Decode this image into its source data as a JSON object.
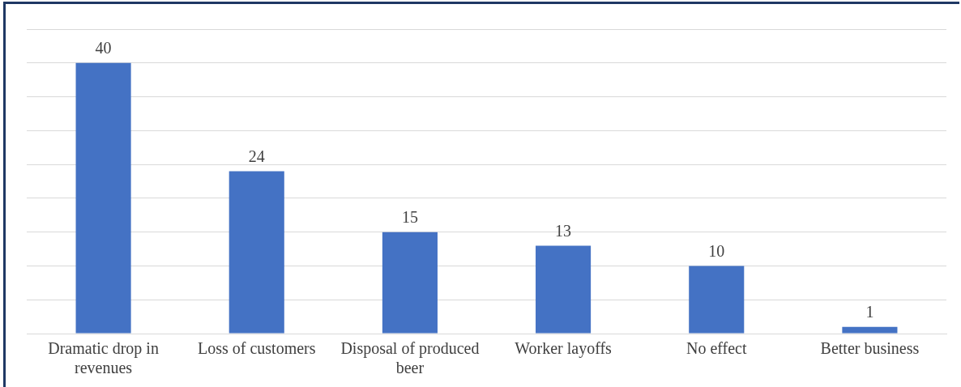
{
  "chart_data": {
    "type": "bar",
    "categories": [
      "Dramatic drop in revenues",
      "Loss of customers",
      "Disposal of produced beer",
      "Worker layoffs",
      "No effect",
      "Better business"
    ],
    "values": [
      40,
      24,
      15,
      13,
      10,
      1
    ],
    "color": "#4472c4",
    "ylim": [
      0,
      45
    ],
    "yticks": [
      {
        "value": 0,
        "label": null
      },
      {
        "value": 5,
        "label": null
      },
      {
        "value": 10,
        "label": null
      },
      {
        "value": 15,
        "label": null
      },
      {
        "value": 20,
        "label": null
      },
      {
        "value": 25,
        "label": null
      },
      {
        "value": 30,
        "label": null
      },
      {
        "value": 35,
        "label": null
      },
      {
        "value": 40,
        "label": null
      },
      {
        "value": 45,
        "label": null
      }
    ],
    "tick_labels": "x",
    "grid": "y",
    "data_labels": true,
    "legend": false
  }
}
